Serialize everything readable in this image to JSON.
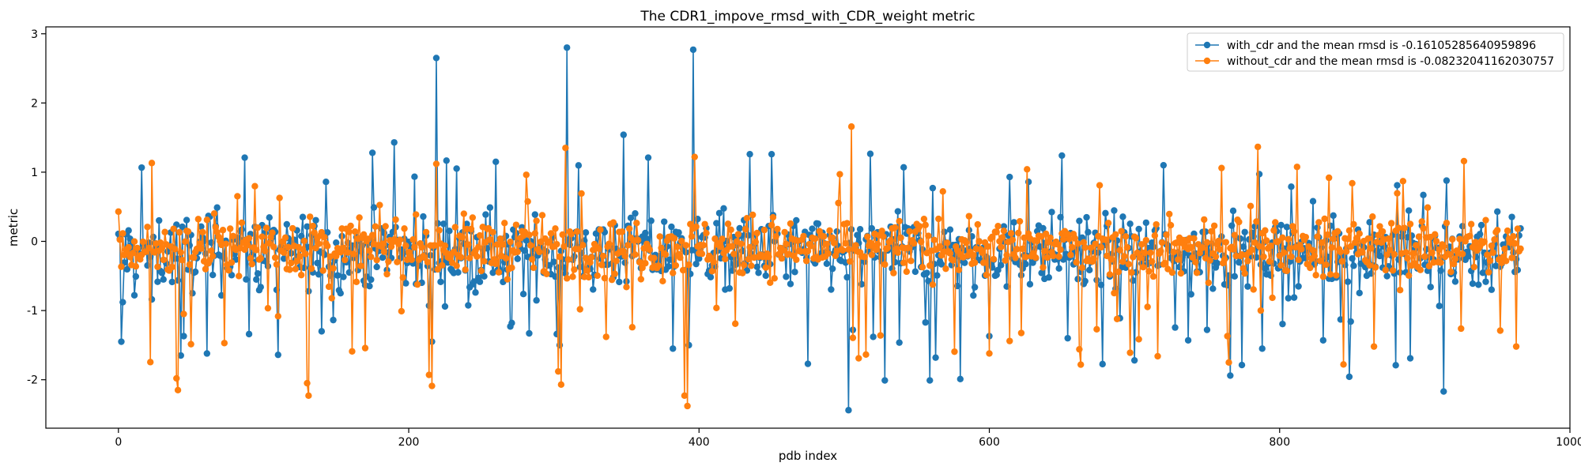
{
  "chart_data": {
    "type": "line",
    "title": "The CDR1_impove_rmsd_with_CDR_weight metric",
    "xlabel": "pdb index",
    "ylabel": "metric",
    "xlim": [
      -50,
      1000
    ],
    "ylim": [
      -2.7,
      3.1
    ],
    "xticks": [
      0,
      200,
      400,
      600,
      800,
      1000
    ],
    "yticks": [
      -2,
      -1,
      0,
      1,
      2,
      3
    ],
    "grid": false,
    "legend_position": "top-right",
    "n_points": 967,
    "markers": "circle",
    "series": [
      {
        "name": "with_cdr and the mean rmsd is -0.16105285640959896",
        "color": "#1f77b4",
        "mean": -0.16105285640959896,
        "spread": 0.38,
        "highlights": [
          [
            2,
            -1.45
          ],
          [
            3,
            -0.88
          ],
          [
            43,
            -1.65
          ],
          [
            45,
            -1.37
          ],
          [
            87,
            1.21
          ],
          [
            90,
            -1.34
          ],
          [
            110,
            -1.64
          ],
          [
            143,
            0.86
          ],
          [
            153,
            -0.75
          ],
          [
            175,
            1.28
          ],
          [
            190,
            1.43
          ],
          [
            214,
            -0.93
          ],
          [
            216,
            -1.45
          ],
          [
            219,
            2.65
          ],
          [
            260,
            1.15
          ],
          [
            270,
            -1.23
          ],
          [
            283,
            -1.33
          ],
          [
            302,
            -1.34
          ],
          [
            304,
            -1.5
          ],
          [
            309,
            2.8
          ],
          [
            348,
            1.54
          ],
          [
            365,
            1.21
          ],
          [
            382,
            -1.55
          ],
          [
            393,
            -1.5
          ],
          [
            396,
            2.77
          ],
          [
            435,
            1.26
          ],
          [
            450,
            1.26
          ],
          [
            475,
            -1.77
          ],
          [
            503,
            -2.44
          ],
          [
            506,
            -1.28
          ],
          [
            520,
            -1.38
          ],
          [
            528,
            -2.01
          ],
          [
            541,
            1.07
          ],
          [
            559,
            -2.01
          ],
          [
            563,
            -1.68
          ],
          [
            580,
            -1.99
          ],
          [
            600,
            -1.37
          ],
          [
            614,
            0.93
          ],
          [
            627,
            0.86
          ],
          [
            654,
            -1.4
          ],
          [
            690,
            -1.11
          ],
          [
            700,
            -1.72
          ],
          [
            720,
            1.1
          ],
          [
            737,
            -1.43
          ],
          [
            766,
            -1.94
          ],
          [
            788,
            -1.55
          ],
          [
            808,
            0.79
          ],
          [
            830,
            -1.43
          ],
          [
            880,
            -1.79
          ],
          [
            881,
            0.81
          ],
          [
            899,
            0.67
          ],
          [
            913,
            -2.17
          ],
          [
            950,
            0.43
          ]
        ]
      },
      {
        "name": "without_cdr and the mean rmsd is -0.08232041162030757",
        "color": "#ff7f0e",
        "mean": -0.08232041162030757,
        "spread": 0.3,
        "highlights": [
          [
            0,
            0.43
          ],
          [
            40,
            -1.98
          ],
          [
            41,
            -2.15
          ],
          [
            45,
            -1.05
          ],
          [
            73,
            -1.47
          ],
          [
            130,
            -2.05
          ],
          [
            131,
            -2.23
          ],
          [
            161,
            -1.59
          ],
          [
            214,
            -1.93
          ],
          [
            216,
            -2.09
          ],
          [
            219,
            1.12
          ],
          [
            303,
            -1.88
          ],
          [
            305,
            -2.07
          ],
          [
            308,
            1.35
          ],
          [
            336,
            -1.38
          ],
          [
            390,
            -2.23
          ],
          [
            392,
            -2.38
          ],
          [
            397,
            1.22
          ],
          [
            425,
            -1.19
          ],
          [
            497,
            0.97
          ],
          [
            510,
            -1.69
          ],
          [
            525,
            -1.36
          ],
          [
            600,
            -1.62
          ],
          [
            614,
            -1.44
          ],
          [
            676,
            0.81
          ],
          [
            697,
            -1.61
          ],
          [
            716,
            -1.66
          ],
          [
            760,
            1.06
          ],
          [
            765,
            -1.75
          ],
          [
            787,
            -1.0
          ],
          [
            850,
            0.84
          ],
          [
            865,
            -1.52
          ],
          [
            885,
            0.87
          ],
          [
            927,
            1.16
          ],
          [
            952,
            -1.29
          ],
          [
            963,
            -1.52
          ]
        ]
      }
    ]
  }
}
